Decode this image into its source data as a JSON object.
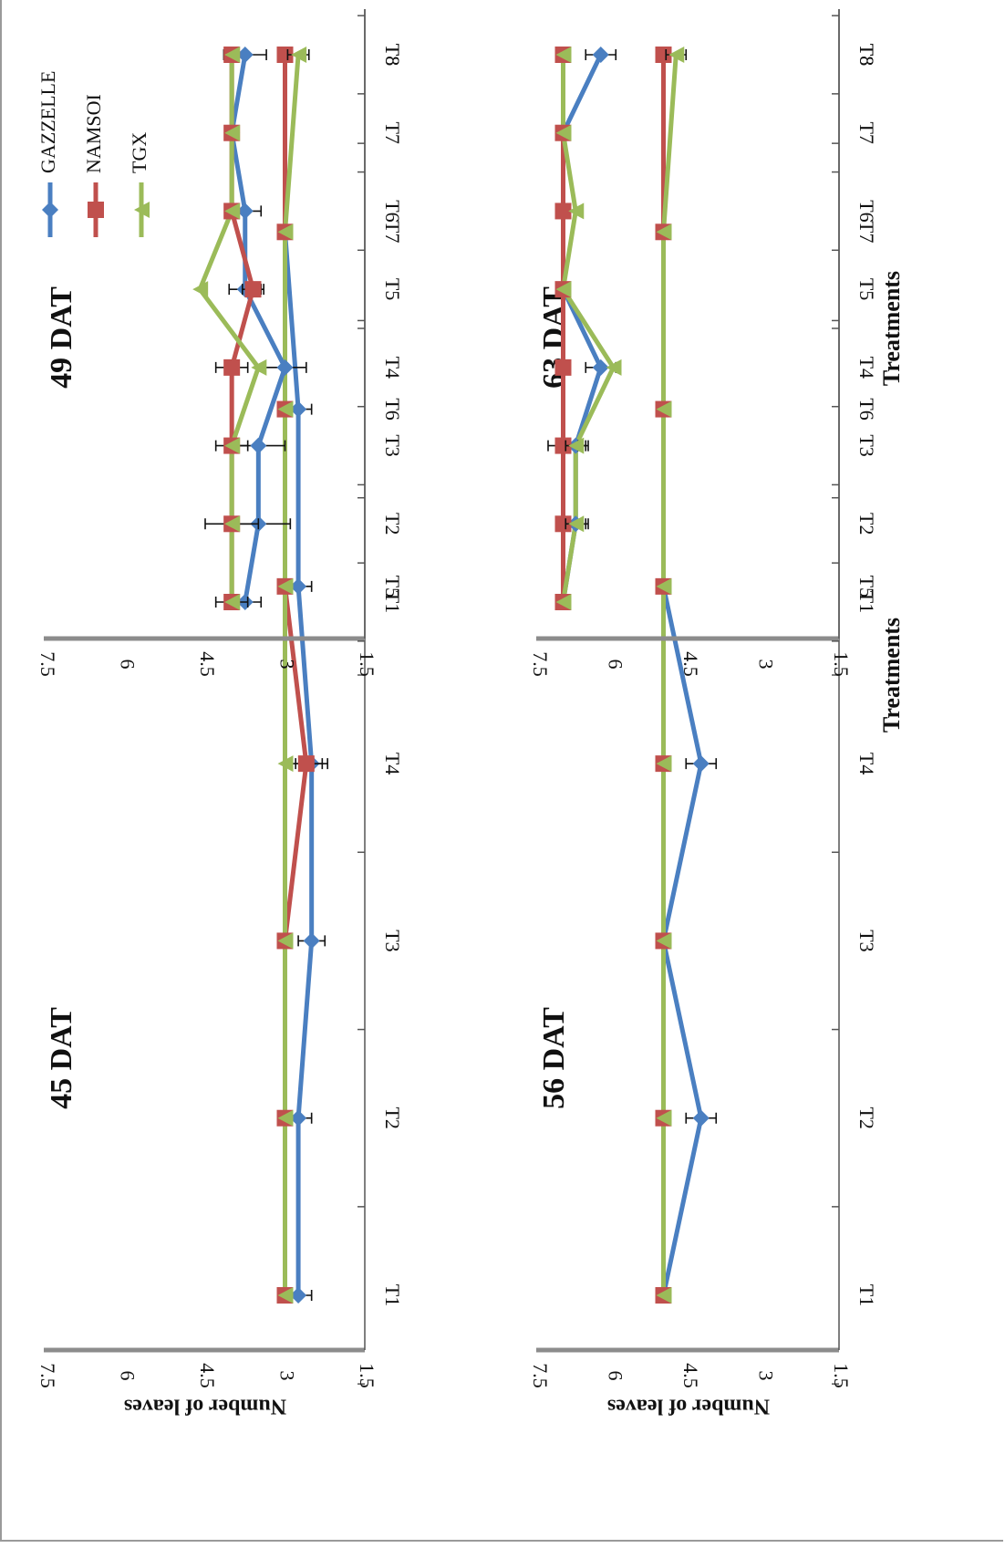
{
  "chart_data": [
    {
      "type": "line",
      "title": "45 DAT",
      "xlabel": "",
      "ylabel": "Number of leaves",
      "categories": [
        "T1",
        "T2",
        "T3",
        "T4",
        "T5",
        "T6",
        "T7",
        "T8"
      ],
      "ylim": [
        1.5,
        7.5
      ],
      "yticks": [
        "1.5",
        "3",
        "4.5",
        "6",
        "7.5"
      ],
      "series": [
        {
          "name": "GAZZELLE",
          "values": [
            2.75,
            2.75,
            2.5,
            2.5,
            2.75,
            2.75,
            3.0,
            3.0
          ],
          "errors": [
            0.25,
            0.25,
            0.25,
            0.3,
            0.25,
            0.25,
            0,
            0
          ]
        },
        {
          "name": "NAMSOI",
          "values": [
            3.0,
            3.0,
            3.0,
            2.6,
            3.0,
            3.0,
            3.0,
            3.0
          ],
          "errors": [
            0,
            0,
            0,
            0.3,
            0,
            0,
            0,
            0
          ]
        },
        {
          "name": "TGX",
          "values": [
            3.0,
            3.0,
            3.0,
            3.0,
            3.0,
            3.0,
            3.0,
            2.75
          ],
          "errors": [
            0,
            0,
            0,
            0,
            0,
            0,
            0,
            0.2
          ]
        }
      ]
    },
    {
      "type": "line",
      "title": "49 DAT",
      "xlabel": "",
      "ylabel": "",
      "categories": [
        "T1",
        "T2",
        "T3",
        "T4",
        "T5",
        "T6",
        "T7",
        "T8"
      ],
      "ylim": [
        1.5,
        7.5
      ],
      "yticks": [
        "1.5",
        "3",
        "4.5",
        "6",
        "7.5"
      ],
      "legend": "top-right",
      "series": [
        {
          "name": "GAZZELLE",
          "values": [
            3.75,
            3.5,
            3.5,
            3.0,
            3.75,
            3.75,
            4.0,
            3.75
          ],
          "errors": [
            0.3,
            0.6,
            0.5,
            0.4,
            0.3,
            0.3,
            0,
            0.4
          ]
        },
        {
          "name": "NAMSOI",
          "values": [
            4.0,
            4.0,
            4.0,
            4.0,
            3.6,
            4.0,
            4.0,
            4.0
          ],
          "errors": [
            0.3,
            0.5,
            0.3,
            0.3,
            0.2,
            0,
            0,
            0
          ]
        },
        {
          "name": "TGX",
          "values": [
            4.0,
            4.0,
            4.0,
            3.5,
            4.6,
            4.0,
            4.0,
            4.0
          ],
          "errors": [
            0,
            0,
            0,
            0,
            0,
            0,
            0,
            0
          ]
        }
      ]
    },
    {
      "type": "line",
      "title": "56 DAT",
      "xlabel": "Treatments",
      "ylabel": "Number of leaves",
      "categories": [
        "T1",
        "T2",
        "T3",
        "T4",
        "T5",
        "T6",
        "T7",
        "T8"
      ],
      "ylim": [
        1.5,
        7.5
      ],
      "yticks": [
        "1.5",
        "3",
        "4.5",
        "6",
        "7.5"
      ],
      "series": [
        {
          "name": "GAZZELLE",
          "values": [
            5.0,
            4.25,
            5.0,
            4.25,
            5.0,
            5.0,
            5.0,
            5.0
          ],
          "errors": [
            0,
            0.3,
            0,
            0.3,
            0,
            0,
            0,
            0
          ]
        },
        {
          "name": "NAMSOI",
          "values": [
            5.0,
            5.0,
            5.0,
            5.0,
            5.0,
            5.0,
            5.0,
            5.0
          ],
          "errors": [
            0,
            0,
            0,
            0,
            0,
            0,
            0,
            0
          ]
        },
        {
          "name": "TGX",
          "values": [
            5.0,
            5.0,
            5.0,
            5.0,
            5.0,
            5.0,
            5.0,
            4.75
          ],
          "errors": [
            0,
            0,
            0,
            0,
            0,
            0,
            0,
            0.2
          ]
        }
      ]
    },
    {
      "type": "line",
      "title": "63 DAT",
      "xlabel": "Treatments",
      "ylabel": "",
      "categories": [
        "T1",
        "T2",
        "T3",
        "T4",
        "T5",
        "T6",
        "T7",
        "T8"
      ],
      "ylim": [
        1.5,
        7.5
      ],
      "yticks": [
        "1.5",
        "3",
        "4.5",
        "6",
        "7.5"
      ],
      "series": [
        {
          "name": "GAZZELLE",
          "values": [
            7.0,
            6.75,
            6.75,
            6.25,
            7.0,
            7.0,
            7.0,
            6.25
          ],
          "errors": [
            0,
            0.25,
            0.25,
            0.3,
            0,
            0,
            0,
            0.3
          ]
        },
        {
          "name": "NAMSOI",
          "values": [
            7.0,
            7.0,
            7.0,
            7.0,
            7.0,
            7.0,
            7.0,
            7.0
          ],
          "errors": [
            0,
            0,
            0.3,
            0,
            0,
            0,
            0,
            0
          ]
        },
        {
          "name": "TGX",
          "values": [
            7.0,
            6.75,
            6.75,
            6.0,
            7.0,
            6.75,
            7.0,
            7.0
          ],
          "errors": [
            0,
            0.2,
            0.2,
            0,
            0,
            0,
            0,
            0
          ]
        }
      ]
    }
  ],
  "colors": {
    "GAZZELLE": "#4a7fc1",
    "NAMSOI": "#c0504d",
    "TGX": "#9bbb59",
    "axis": "#8c8c8c",
    "text": "#111111"
  }
}
